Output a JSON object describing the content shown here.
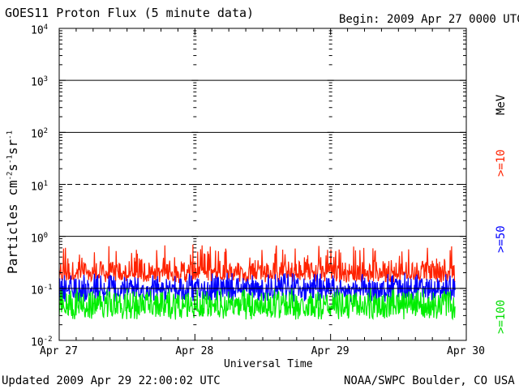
{
  "header": {
    "title": "GOES11 Proton Flux (5 minute data)",
    "begin": "Begin: 2009 Apr 27 0000 UTC"
  },
  "footer": {
    "updated": "Updated 2009 Apr 29 22:00:02 UTC",
    "source": "NOAA/SWPC Boulder, CO USA"
  },
  "axes": {
    "ylabel_main": "Particles cm",
    "ylabel_sup1": "-2",
    "ylabel_s": "s",
    "ylabel_sup2": "-1",
    "ylabel_sr": "sr",
    "ylabel_sup3": "-1",
    "xlabel": "Universal Time",
    "unit_label": "MeV"
  },
  "colors": {
    "ge10": "#ff2200",
    "ge50": "#0000ff",
    "ge100": "#00ee00",
    "grid": "#000000"
  },
  "chart_data": {
    "type": "line",
    "title": "GOES11 Proton Flux (5 minute data)",
    "xlabel": "Universal Time",
    "ylabel": "Particles cm-2 s-1 sr-1",
    "yscale": "log",
    "ylim": [
      0.01,
      10000
    ],
    "y_ticks": [
      {
        "base": "10",
        "exp": "-2",
        "value": 0.01
      },
      {
        "base": "10",
        "exp": "-1",
        "value": 0.1
      },
      {
        "base": "10",
        "exp": "0",
        "value": 1
      },
      {
        "base": "10",
        "exp": "1",
        "value": 10
      },
      {
        "base": "10",
        "exp": "2",
        "value": 100
      },
      {
        "base": "10",
        "exp": "3",
        "value": 1000
      },
      {
        "base": "10",
        "exp": "4",
        "value": 10000
      }
    ],
    "x_ticks": [
      "Apr 27",
      "Apr 28",
      "Apr 29",
      "Apr 30"
    ],
    "xlim": [
      "2009-04-27",
      "2009-04-30"
    ],
    "data_end": "2009-04-29 22:00",
    "threshold_lines": [
      {
        "value": 10,
        "style": "dashed"
      },
      {
        "value": 1,
        "style": "solid"
      },
      {
        "value": 100,
        "style": "solid"
      },
      {
        "value": 1000,
        "style": "solid"
      }
    ],
    "series": [
      {
        "name": ">=10",
        "color": "#ff2200",
        "typical": 0.22,
        "min": 0.13,
        "max": 0.7
      },
      {
        "name": ">=50",
        "color": "#0000ff",
        "typical": 0.1,
        "min": 0.055,
        "max": 0.2
      },
      {
        "name": ">=100",
        "color": "#00ee00",
        "typical": 0.05,
        "min": 0.025,
        "max": 0.1
      }
    ]
  }
}
